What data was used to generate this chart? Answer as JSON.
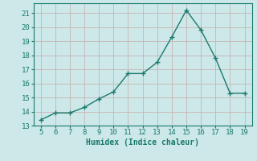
{
  "x": [
    5,
    6,
    7,
    8,
    9,
    10,
    11,
    12,
    13,
    14,
    15,
    16,
    17,
    18,
    19
  ],
  "y": [
    13.4,
    13.9,
    13.9,
    14.3,
    14.9,
    15.4,
    16.7,
    16.7,
    17.5,
    19.3,
    21.2,
    19.8,
    17.8,
    15.3,
    15.3
  ],
  "xlabel": "Humidex (Indice chaleur)",
  "xlim": [
    4.5,
    19.5
  ],
  "ylim": [
    13,
    21.7
  ],
  "yticks": [
    13,
    14,
    15,
    16,
    17,
    18,
    19,
    20,
    21
  ],
  "xticks": [
    5,
    6,
    7,
    8,
    9,
    10,
    11,
    12,
    13,
    14,
    15,
    16,
    17,
    18,
    19
  ],
  "line_color": "#1a7a6e",
  "marker_color": "#1a7a6e",
  "bg_color": "#cce8e8",
  "grid_color": "#c8b4b4",
  "axes_bg": "#cce8e8"
}
